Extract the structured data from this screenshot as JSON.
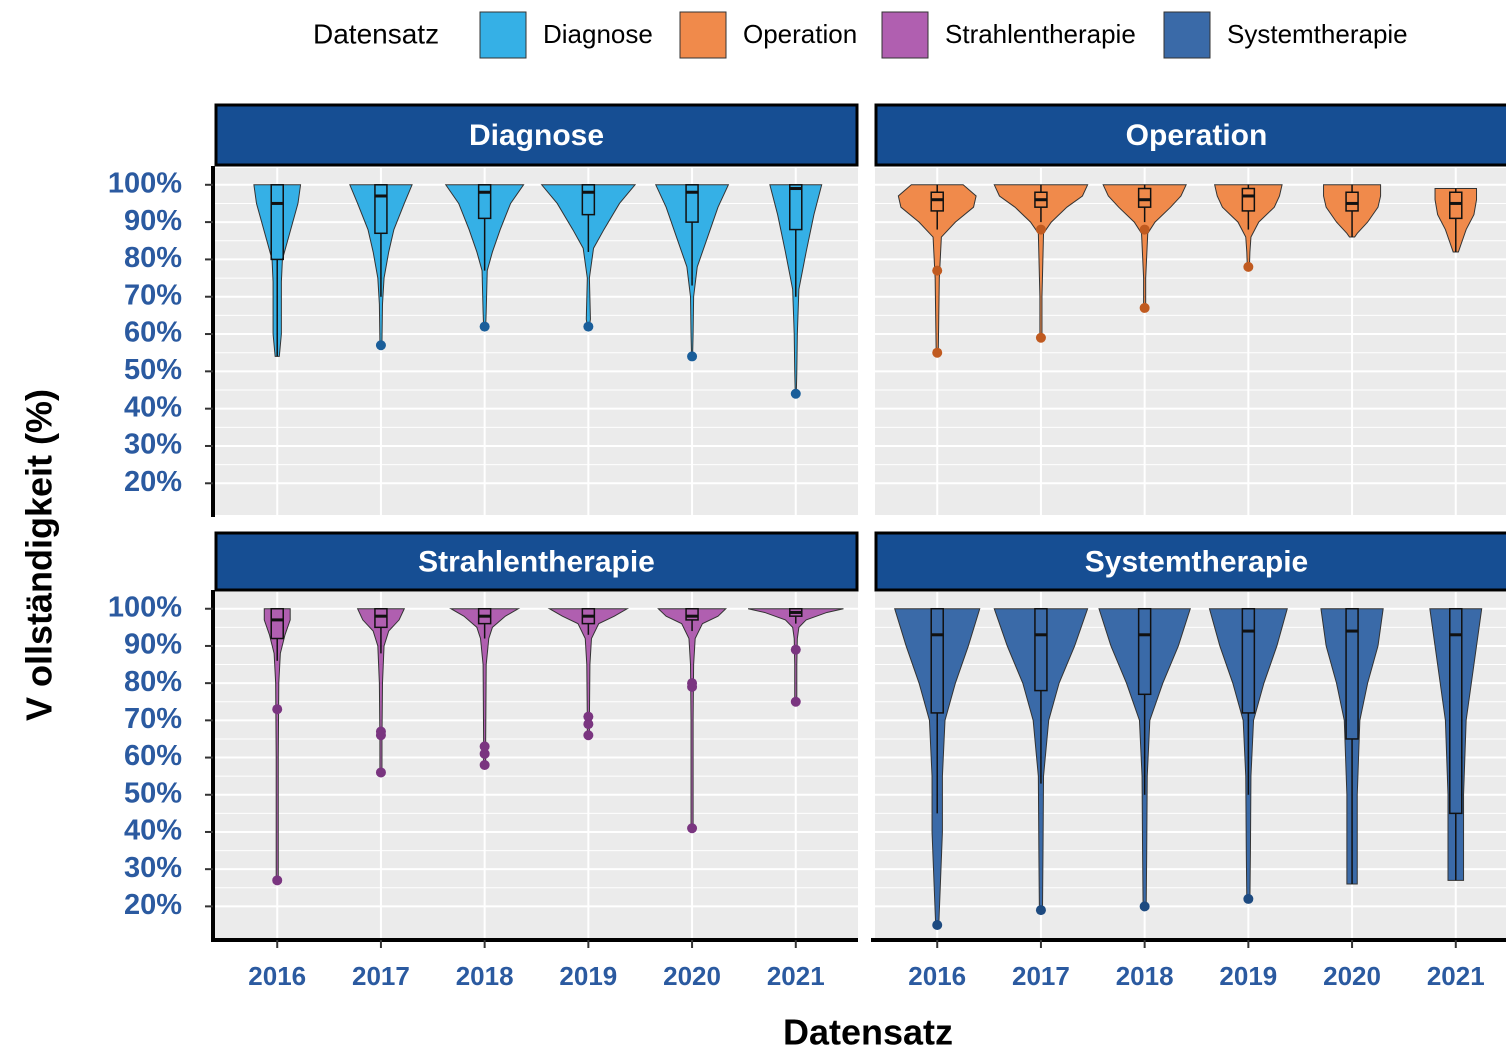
{
  "legend": {
    "title": "Datensatz"
  },
  "chart_data": {
    "type": "violin",
    "xlabel": "Datensatz",
    "ylabel": "V ollständigkeit (%)",
    "legend_position": "top",
    "grid": true,
    "categories": [
      "2016",
      "2017",
      "2018",
      "2019",
      "2020",
      "2021"
    ],
    "ylim": [
      11.5,
      104.5
    ],
    "yticks": [
      {
        "value": 20,
        "label": "20%"
      },
      {
        "value": 30,
        "label": "30%"
      },
      {
        "value": 40,
        "label": "40%"
      },
      {
        "value": 50,
        "label": "50%"
      },
      {
        "value": 60,
        "label": "60%"
      },
      {
        "value": 70,
        "label": "70%"
      },
      {
        "value": 80,
        "label": "80%"
      },
      {
        "value": 90,
        "label": "90%"
      },
      {
        "value": 100,
        "label": "100%"
      }
    ],
    "facets": [
      {
        "title": "Diagnose",
        "color": "#35b0e6",
        "outlier_color": "#1a5e9a",
        "boxes": [
          [
            54,
            80,
            95,
            100,
            100
          ],
          [
            70,
            87,
            97,
            100,
            100
          ],
          [
            77,
            91,
            98,
            100,
            100
          ],
          [
            82,
            92,
            98,
            100,
            100
          ],
          [
            73,
            90,
            98,
            100,
            100
          ],
          [
            70,
            88,
            99,
            100,
            100
          ]
        ],
        "outliers": [
          [],
          [
            57
          ],
          [
            62
          ],
          [
            62
          ],
          [
            54
          ],
          [
            44
          ]
        ],
        "violins": [
          {
            "y": [
              100,
              95,
              85,
              80,
              74,
              60,
              54
            ],
            "width": [
              0.45,
              0.4,
              0.2,
              0.1,
              0.08,
              0.08,
              0.04
            ]
          },
          {
            "y": [
              100,
              95,
              88,
              82,
              75,
              68,
              58
            ],
            "width": [
              0.6,
              0.45,
              0.25,
              0.15,
              0.06,
              0.03,
              0.02
            ]
          },
          {
            "y": [
              100,
              95,
              88,
              82,
              77,
              66,
              62
            ],
            "width": [
              0.75,
              0.5,
              0.3,
              0.15,
              0.05,
              0.03,
              0.02
            ]
          },
          {
            "y": [
              100,
              95,
              88,
              83,
              75,
              64,
              62
            ],
            "width": [
              0.9,
              0.6,
              0.3,
              0.1,
              0.02,
              0.04,
              0.02
            ]
          },
          {
            "y": [
              100,
              94,
              86,
              78,
              70,
              60,
              54
            ],
            "width": [
              0.7,
              0.5,
              0.3,
              0.1,
              0.03,
              0.02,
              0.01
            ]
          },
          {
            "y": [
              100,
              92,
              82,
              72,
              60,
              50,
              44
            ],
            "width": [
              0.5,
              0.35,
              0.2,
              0.06,
              0.03,
              0.02,
              0.01
            ]
          }
        ]
      },
      {
        "title": "Operation",
        "color": "#f08a4b",
        "outlier_color": "#c05a20",
        "boxes": [
          [
            88,
            93,
            96,
            98,
            100
          ],
          [
            90,
            94,
            96,
            98,
            100
          ],
          [
            90,
            94,
            96,
            99,
            100
          ],
          [
            88,
            93,
            97,
            99,
            100
          ],
          [
            86,
            93,
            95,
            98,
            100
          ],
          [
            82,
            91,
            95,
            98,
            99
          ]
        ],
        "outliers": [
          [
            77,
            55
          ],
          [
            88,
            59
          ],
          [
            88,
            67
          ],
          [
            78
          ],
          [],
          []
        ],
        "violins": [
          {
            "y": [
              100,
              97,
              94,
              90,
              86,
              75,
              55
            ],
            "width": [
              0.5,
              0.75,
              0.7,
              0.35,
              0.08,
              0.04,
              0.02
            ]
          },
          {
            "y": [
              100,
              97,
              94,
              90,
              87,
              70,
              59
            ],
            "width": [
              0.9,
              0.8,
              0.5,
              0.2,
              0.05,
              0.02,
              0.02
            ]
          },
          {
            "y": [
              100,
              97,
              94,
              90,
              87,
              75,
              67
            ],
            "width": [
              0.8,
              0.7,
              0.5,
              0.2,
              0.06,
              0.02,
              0.02
            ]
          },
          {
            "y": [
              100,
              97,
              94,
              90,
              86,
              82,
              78
            ],
            "width": [
              0.65,
              0.6,
              0.5,
              0.2,
              0.05,
              0.03,
              0.02
            ]
          },
          {
            "y": [
              100,
              97,
              94,
              90,
              87,
              86,
              86
            ],
            "width": [
              0.55,
              0.55,
              0.5,
              0.3,
              0.1,
              0.05,
              0.02
            ]
          },
          {
            "y": [
              99,
              96,
              92,
              88,
              84,
              82,
              82
            ],
            "width": [
              0.4,
              0.4,
              0.35,
              0.2,
              0.1,
              0.05,
              0.02
            ]
          }
        ]
      },
      {
        "title": "Strahlentherapie",
        "color": "#b05fb0",
        "outlier_color": "#7a3580",
        "boxes": [
          [
            86,
            92,
            97,
            100,
            100
          ],
          [
            88,
            95,
            98,
            100,
            100
          ],
          [
            92,
            96,
            98,
            100,
            100
          ],
          [
            93,
            96,
            98,
            100,
            100
          ],
          [
            94,
            97,
            98,
            100,
            100
          ],
          [
            96,
            98,
            99,
            100,
            100
          ]
        ],
        "outliers": [
          [
            73,
            27
          ],
          [
            67,
            66,
            56
          ],
          [
            63,
            61,
            58
          ],
          [
            71,
            69,
            66
          ],
          [
            80,
            79,
            41
          ],
          [
            89,
            75
          ]
        ],
        "violins": [
          {
            "y": [
              100,
              97,
              93,
              88,
              80,
              60,
              27
            ],
            "width": [
              0.25,
              0.25,
              0.15,
              0.06,
              0.03,
              0.02,
              0.02
            ]
          },
          {
            "y": [
              100,
              97,
              94,
              90,
              80,
              65,
              56
            ],
            "width": [
              0.45,
              0.35,
              0.15,
              0.06,
              0.03,
              0.02,
              0.02
            ]
          },
          {
            "y": [
              100,
              98,
              95,
              92,
              85,
              65,
              58
            ],
            "width": [
              0.65,
              0.4,
              0.15,
              0.08,
              0.03,
              0.02,
              0.02
            ]
          },
          {
            "y": [
              100,
              98,
              96,
              92,
              85,
              70,
              66
            ],
            "width": [
              0.75,
              0.5,
              0.2,
              0.06,
              0.03,
              0.02,
              0.02
            ]
          },
          {
            "y": [
              100,
              98,
              96,
              92,
              85,
              70,
              41
            ],
            "width": [
              0.65,
              0.5,
              0.2,
              0.06,
              0.03,
              0.02,
              0.02
            ]
          },
          {
            "y": [
              100,
              99,
              97,
              95,
              92,
              85,
              75
            ],
            "width": [
              0.92,
              0.6,
              0.2,
              0.06,
              0.03,
              0.02,
              0.02
            ]
          }
        ]
      },
      {
        "title": "Systemtherapie",
        "color": "#3a6aa8",
        "outlier_color": "#1d4a80",
        "boxes": [
          [
            45,
            72,
            93,
            100,
            100
          ],
          [
            53,
            78,
            93,
            100,
            100
          ],
          [
            50,
            77,
            93,
            100,
            100
          ],
          [
            50,
            72,
            94,
            100,
            100
          ],
          [
            26,
            65,
            94,
            100,
            100
          ],
          [
            27,
            45,
            93,
            100,
            100
          ]
        ],
        "outliers": [
          [
            15
          ],
          [
            19
          ],
          [
            20
          ],
          [
            22
          ],
          [],
          []
        ],
        "violins": [
          {
            "y": [
              100,
              90,
              80,
              70,
              55,
              40,
              15
            ],
            "width": [
              0.82,
              0.6,
              0.35,
              0.15,
              0.1,
              0.1,
              0.03
            ]
          },
          {
            "y": [
              100,
              90,
              80,
              70,
              55,
              35,
              19
            ],
            "width": [
              0.9,
              0.65,
              0.35,
              0.15,
              0.05,
              0.04,
              0.03
            ]
          },
          {
            "y": [
              100,
              90,
              80,
              70,
              55,
              35,
              20
            ],
            "width": [
              0.88,
              0.65,
              0.35,
              0.1,
              0.05,
              0.04,
              0.03
            ]
          },
          {
            "y": [
              100,
              90,
              80,
              70,
              55,
              35,
              22
            ],
            "width": [
              0.75,
              0.55,
              0.3,
              0.1,
              0.05,
              0.04,
              0.03
            ]
          },
          {
            "y": [
              100,
              90,
              80,
              70,
              50,
              35,
              26
            ],
            "width": [
              0.6,
              0.5,
              0.3,
              0.15,
              0.1,
              0.1,
              0.1
            ]
          },
          {
            "y": [
              100,
              90,
              80,
              70,
              50,
              35,
              27
            ],
            "width": [
              0.5,
              0.4,
              0.3,
              0.2,
              0.15,
              0.15,
              0.15
            ]
          }
        ]
      }
    ]
  }
}
